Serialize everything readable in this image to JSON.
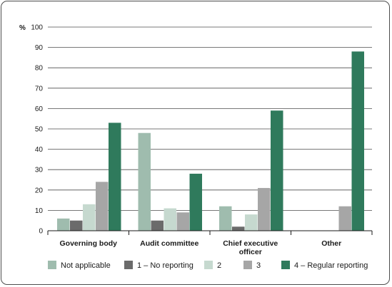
{
  "chart_data": {
    "type": "bar",
    "ylabel": "%",
    "ylim": [
      0,
      100
    ],
    "yticks": [
      0,
      10,
      20,
      30,
      40,
      50,
      60,
      70,
      80,
      90,
      100
    ],
    "grid": true,
    "legend_position": "bottom",
    "categories": [
      [
        "Governing body"
      ],
      [
        "Audit committee"
      ],
      [
        "Chief executive",
        "officer"
      ],
      [
        "Other"
      ]
    ],
    "series": [
      {
        "name": "Not applicable",
        "color": "#9fbcae",
        "values": [
          6,
          48,
          12,
          0
        ]
      },
      {
        "name": "1 – No reporting",
        "color": "#6b6b6b",
        "values": [
          5,
          5,
          2,
          0
        ]
      },
      {
        "name": "2",
        "color": "#c6d9cf",
        "values": [
          13,
          11,
          8,
          0
        ]
      },
      {
        "name": "3",
        "color": "#a6a6a6",
        "values": [
          24,
          9,
          21,
          12
        ]
      },
      {
        "name": "4 – Regular reporting",
        "color": "#2f7a5c",
        "values": [
          53,
          28,
          59,
          88
        ]
      }
    ]
  }
}
